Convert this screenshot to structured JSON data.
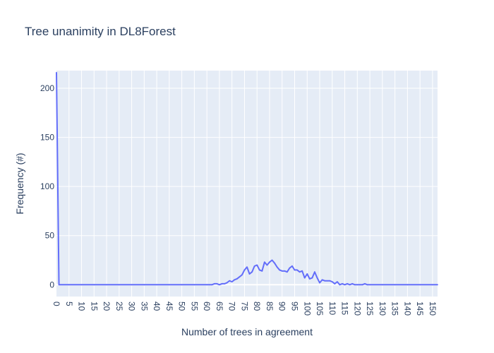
{
  "chart_data": {
    "type": "line",
    "title": "Tree unanimity in DL8Forest",
    "xlabel": "Number of trees in agreement",
    "ylabel": "Frequency (#)",
    "xlim": [
      0,
      152
    ],
    "ylim": [
      -12,
      218
    ],
    "xticks": [
      0,
      5,
      10,
      15,
      20,
      25,
      30,
      35,
      40,
      45,
      50,
      55,
      60,
      65,
      70,
      75,
      80,
      85,
      90,
      95,
      100,
      105,
      110,
      115,
      120,
      125,
      130,
      135,
      140,
      145,
      150
    ],
    "yticks": [
      0,
      50,
      100,
      150,
      200
    ],
    "grid": true,
    "legend": "none",
    "colors": {
      "line": "#636efa",
      "plot_bg": "#e5ecf6",
      "grid": "#ffffff",
      "text": "#2a3f5f"
    },
    "series": [
      {
        "x": [
          0,
          1,
          5,
          10,
          15,
          20,
          25,
          30,
          35,
          40,
          45,
          50,
          55,
          60,
          61,
          62,
          63,
          64,
          65,
          66,
          67,
          68,
          69,
          70,
          71,
          72,
          73,
          74,
          75,
          76,
          77,
          78,
          79,
          80,
          81,
          82,
          83,
          84,
          85,
          86,
          87,
          88,
          89,
          90,
          91,
          92,
          93,
          94,
          95,
          96,
          97,
          98,
          99,
          100,
          101,
          102,
          103,
          104,
          105,
          106,
          107,
          108,
          109,
          110,
          111,
          112,
          113,
          114,
          115,
          116,
          117,
          118,
          119,
          120,
          121,
          122,
          123,
          124,
          125,
          130,
          135,
          140,
          145,
          150,
          152
        ],
        "y": [
          216,
          0,
          0,
          0,
          0,
          0,
          0,
          0,
          0,
          0,
          0,
          0,
          0,
          0,
          0,
          0,
          1,
          1,
          0,
          1,
          1,
          2,
          4,
          3,
          5,
          6,
          8,
          10,
          15,
          18,
          11,
          13,
          19,
          20,
          15,
          14,
          23,
          20,
          23,
          25,
          22,
          18,
          15,
          14,
          14,
          13,
          17,
          19,
          15,
          15,
          13,
          14,
          7,
          11,
          6,
          7,
          13,
          7,
          2,
          5,
          4,
          4,
          4,
          3,
          1,
          3,
          0,
          1,
          0,
          1,
          0,
          1,
          0,
          0,
          0,
          0,
          1,
          0,
          0,
          0,
          0,
          0,
          0,
          0,
          0
        ]
      }
    ]
  }
}
